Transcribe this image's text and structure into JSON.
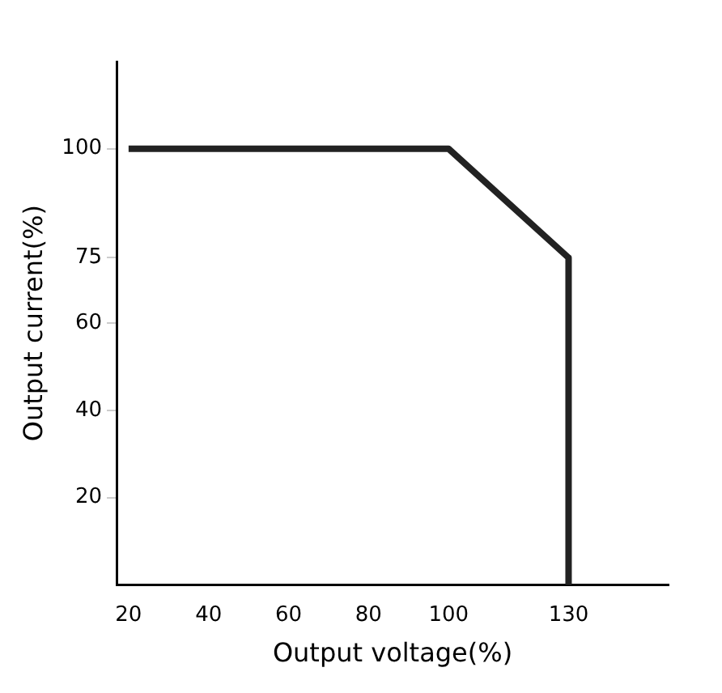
{
  "chart_data": {
    "type": "line",
    "xlabel": "Output voltage(%)",
    "ylabel": "Output current(%)",
    "x": [
      20,
      100,
      130,
      130
    ],
    "series": [
      {
        "color": "#222222",
        "values": [
          100,
          100,
          75,
          0
        ]
      }
    ],
    "xlim": [
      17,
      155
    ],
    "xticks": [
      20,
      40,
      60,
      80,
      100,
      130
    ],
    "ylim": [
      0,
      120
    ],
    "yticks": [
      20,
      40,
      60,
      75,
      100
    ],
    "grid": false,
    "legend": false,
    "marker": "none",
    "line_style": "solid"
  }
}
